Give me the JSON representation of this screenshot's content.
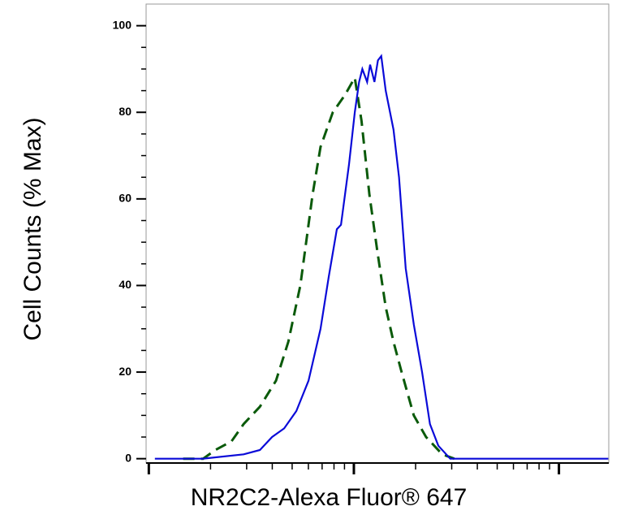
{
  "chart_data": {
    "type": "line",
    "xlabel": "NR2C2-Alexa Fluor® 647",
    "ylabel": "Cell Counts (% Max)",
    "xscale": "log",
    "xlim": [
      0.97,
      175
    ],
    "xticks": [
      1,
      10,
      100
    ],
    "xminorticks": [
      2,
      3,
      4,
      5,
      6,
      7,
      8,
      9,
      20,
      30,
      40,
      50,
      60,
      70,
      80,
      90
    ],
    "ylim": [
      -1,
      105
    ],
    "yticks": [
      0,
      20,
      40,
      60,
      80,
      100
    ],
    "yminorticks": [
      5,
      10,
      15,
      25,
      30,
      35,
      45,
      50,
      55,
      65,
      70,
      75,
      85,
      90,
      95
    ],
    "series": [
      {
        "color": "#0a0ad8",
        "dash": false,
        "x": [
          1.07,
          1.84,
          2.9,
          3.48,
          3.99,
          4.57,
          5.24,
          6.01,
          6.88,
          7.54,
          8.26,
          8.65,
          9.47,
          10.1,
          10.6,
          11.0,
          11.6,
          12.0,
          12.6,
          13.1,
          13.6,
          14.3,
          15.6,
          16.6,
          17.9,
          19.6,
          21.5,
          23.5,
          25.8,
          29.5,
          44.5,
          174
        ],
        "values": [
          0,
          0,
          1,
          2,
          5,
          7,
          11,
          18,
          30,
          42,
          53,
          54,
          68,
          80,
          87,
          90,
          87,
          91,
          87,
          92,
          93,
          85,
          76,
          65,
          44,
          31,
          20,
          8,
          3,
          0,
          0,
          0
        ]
      },
      {
        "color": "#0a5a0a",
        "dash": true,
        "x": [
          1.47,
          1.84,
          2.11,
          2.53,
          2.9,
          3.48,
          4.17,
          4.79,
          5.48,
          6.29,
          6.88,
          7.89,
          9.05,
          10.1,
          10.9,
          11.9,
          13.0,
          14.3,
          15.6,
          17.1,
          19.6,
          22.5,
          27.0,
          30.9
        ],
        "values": [
          0,
          0,
          2,
          4,
          8,
          12,
          18,
          27,
          40,
          61,
          72,
          80,
          84,
          88,
          78,
          61,
          48,
          35,
          27,
          20,
          10,
          5,
          1,
          0
        ]
      }
    ]
  }
}
